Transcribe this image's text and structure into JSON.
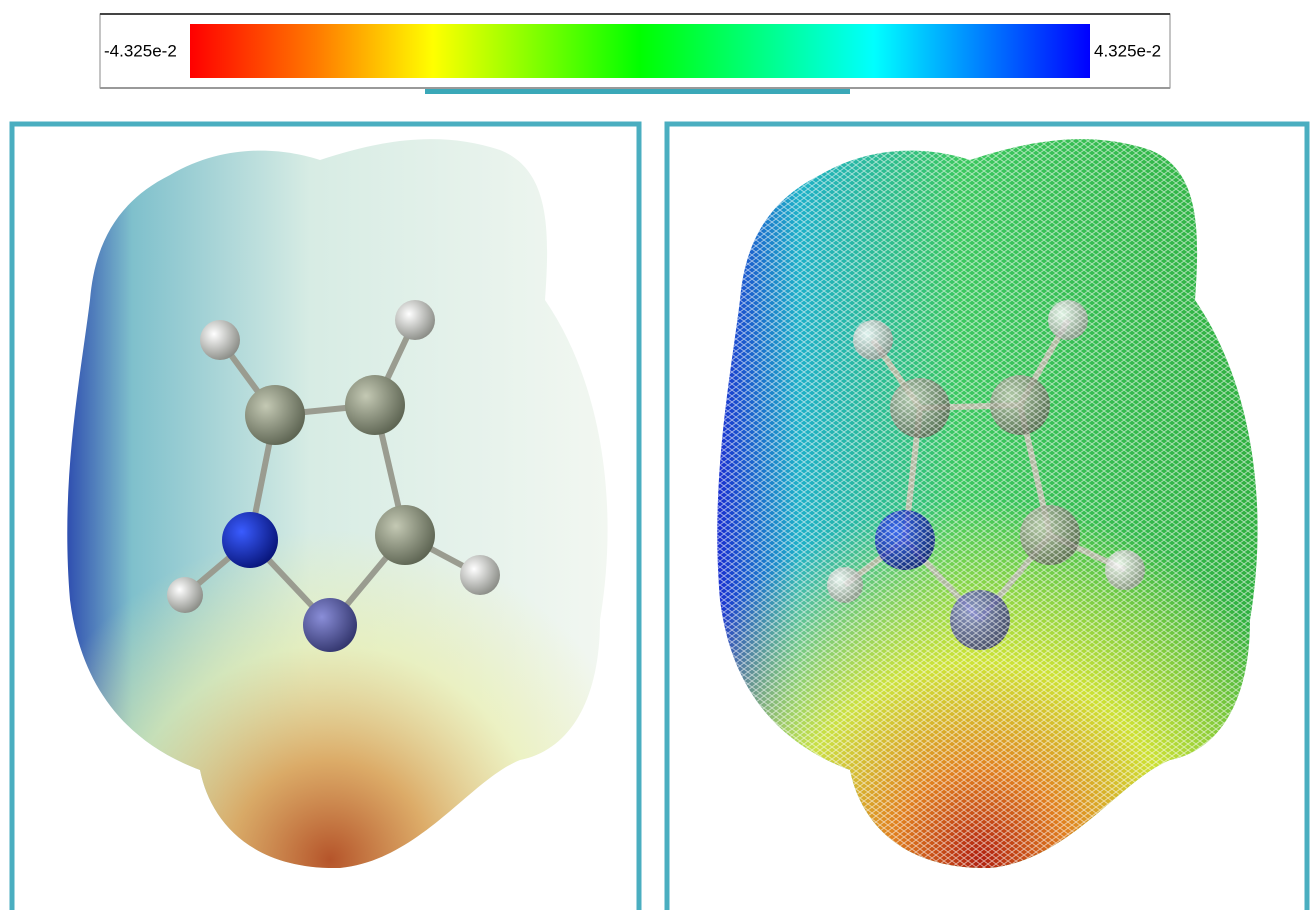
{
  "colorbar": {
    "min_label": "-4.325e-2",
    "max_label": "4.325e-2"
  }
}
